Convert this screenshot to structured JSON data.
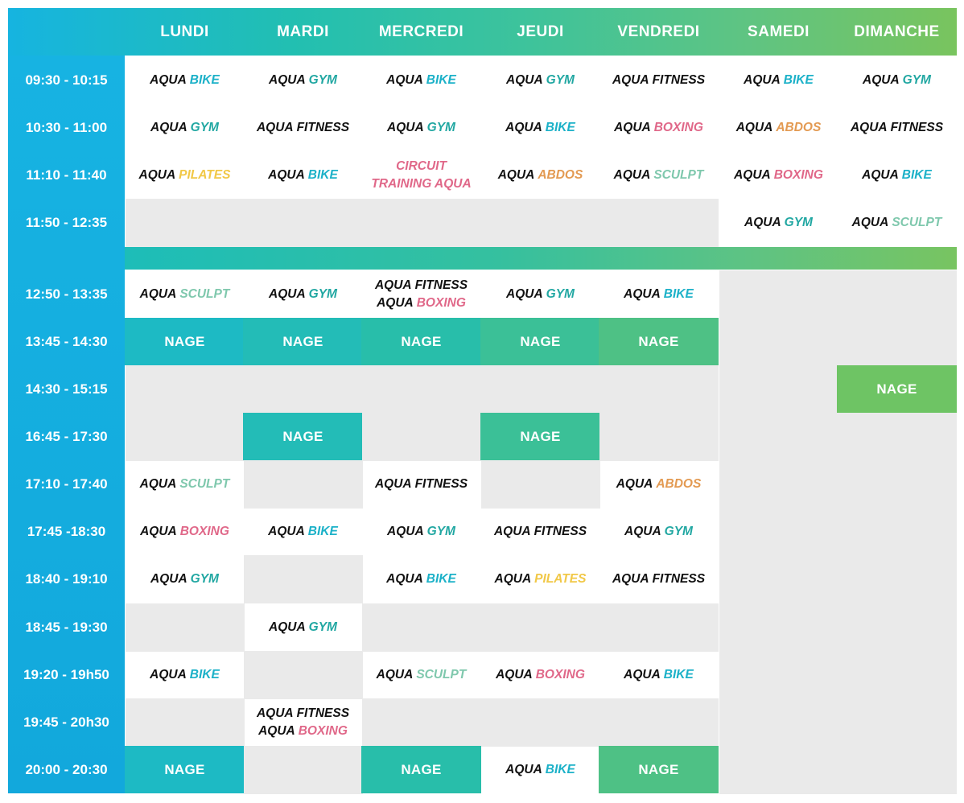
{
  "days": [
    "LUNDI",
    "MARDI",
    "MERCREDI",
    "JEUDI",
    "VENDREDI",
    "SAMEDI",
    "DIMANCHE"
  ],
  "times": [
    "09:30 - 10:15",
    "10:30 - 11:00",
    "11:10 - 11:40",
    "11:50 - 12:35",
    "12:50 - 13:35",
    "13:45 - 14:30",
    "14:30 - 15:15",
    "16:45 - 17:30",
    "17:10 - 17:40",
    "17:45 -18:30",
    "18:40 - 19:10",
    "18:45 - 19:30",
    "19:20 - 19h50",
    "19:45 - 20h30",
    "20:00 - 20:30"
  ],
  "labels": {
    "aqua": "AQUA",
    "bike": "BIKE",
    "gym": "GYM",
    "fitness": "FITNESS",
    "boxing": "BOXING",
    "abdos": "ABDOS",
    "pilates": "PILATES",
    "sculpt": "SCULPT",
    "circuit_line1": "CIRCUIT",
    "circuit_line2": "TRAINING AQUA",
    "nage": "NAGE"
  },
  "colors": {
    "bike": "#1cb1c8",
    "gym": "#21a7a2",
    "boxing": "#e06889",
    "abdos": "#e39a52",
    "pilates": "#f1c847",
    "sculpt": "#7fc8ad",
    "empty_cell": "#eaeaea",
    "header_start": "#16b4e0",
    "header_end": "#79c45e"
  },
  "schedule": [
    [
      "bike",
      "gym",
      "bike",
      "gym",
      "fitness",
      "bike",
      "gym"
    ],
    [
      "gym",
      "fitness",
      "gym",
      "bike",
      "boxing",
      "abdos",
      "fitness"
    ],
    [
      "pilates",
      "bike",
      "circuit",
      "abdos",
      "sculpt",
      "boxing",
      "bike"
    ],
    [
      "",
      "",
      "",
      "",
      "",
      "gym",
      "sculpt"
    ],
    [
      "sculpt",
      "gym",
      "fitness+boxing",
      "gym",
      "bike",
      "",
      ""
    ],
    [
      "nage",
      "nage",
      "nage",
      "nage",
      "nage",
      "",
      ""
    ],
    [
      "",
      "",
      "",
      "",
      "",
      "",
      "nage"
    ],
    [
      "",
      "nage",
      "",
      "nage",
      "",
      "",
      ""
    ],
    [
      "sculpt",
      "",
      "fitness",
      "",
      "abdos",
      "",
      ""
    ],
    [
      "boxing",
      "bike",
      "gym",
      "fitness",
      "gym",
      "",
      ""
    ],
    [
      "gym",
      "",
      "bike",
      "pilates",
      "fitness",
      "",
      ""
    ],
    [
      "",
      "gym",
      "",
      "",
      "",
      "",
      ""
    ],
    [
      "bike",
      "",
      "sculpt",
      "boxing",
      "bike",
      "",
      ""
    ],
    [
      "",
      "fitness+boxing",
      "",
      "",
      "",
      "",
      ""
    ],
    [
      "nage",
      "",
      "nage",
      "bike",
      "nage",
      "",
      ""
    ]
  ]
}
